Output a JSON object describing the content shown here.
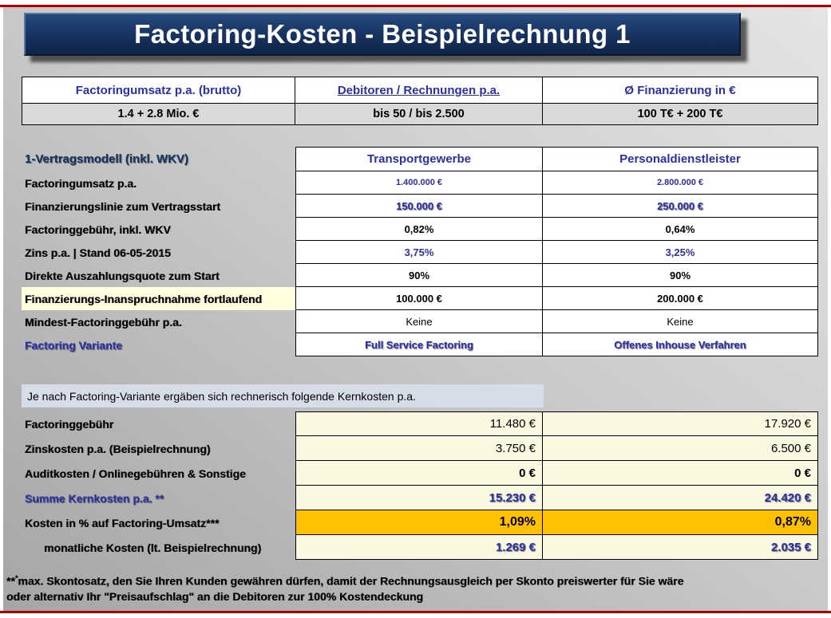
{
  "title": "Factoring-Kosten - Beispielrechnung 1",
  "summary_table": {
    "headers": [
      "Factoringumsatz p.a. (brutto)",
      "Debitoren / Rechnungen p.a.",
      "Ø Finanzierung in €"
    ],
    "values": [
      "1.4 + 2.8 Mio. €",
      "bis 50 / bis 2.500",
      "100 T€ + 200 T€"
    ]
  },
  "model_table": {
    "corner_label": "1-Vertragsmodell (inkl. WKV)",
    "columns": [
      "Transportgewerbe",
      "Personaldienstleister"
    ],
    "rows": [
      {
        "label": "Factoringumsatz p.a.",
        "v1": "1.400.000 €",
        "v2": "2.800.000 €"
      },
      {
        "label": "Finanzierungslinie zum Vertragsstart",
        "v1": "150.000 €",
        "v2": "250.000 €"
      },
      {
        "label": "Factoringgebühr, inkl. WKV",
        "v1": "0,82%",
        "v2": "0,64%"
      },
      {
        "label": "Zins p.a. | Stand 06-05-2015",
        "v1": "3,75%",
        "v2": "3,25%"
      },
      {
        "label": "Direkte Auszahlungsquote zum Start",
        "v1": "90%",
        "v2": "90%"
      },
      {
        "label": "Finanzierungs-Inanspruchnahme fortlaufend",
        "v1": "100.000 €",
        "v2": "200.000 €"
      },
      {
        "label": "Mindest-Factoringgebühr p.a.",
        "v1": "Keine",
        "v2": "Keine"
      },
      {
        "label": "Factoring Variante",
        "v1": "Full Service Factoring",
        "v2": "Offenes Inhouse Verfahren"
      }
    ]
  },
  "note_bar": {
    "text": "Je nach Factoring-Variante ergäben sich rechnerisch folgende Kernkosten p.a."
  },
  "cost_table": {
    "rows": [
      {
        "label": "Factoringgebühr",
        "v1": "11.480 €",
        "v2": "17.920 €"
      },
      {
        "label": "Zinskosten p.a. (Beispielrechnung)",
        "v1": "3.750 €",
        "v2": "6.500 €"
      },
      {
        "label": "Auditkosten / Onlinegebühren & Sonstige",
        "v1": "0 €",
        "v2": "0 €"
      },
      {
        "label": "Summe Kernkosten p.a. **",
        "v1": "15.230 €",
        "v2": "24.420 €"
      },
      {
        "label": "Kosten in % auf Factoring-Umsatz***",
        "v1": "1,09%",
        "v2": "0,87%"
      },
      {
        "label": "monatliche Kosten (lt. Beispielrechnung)",
        "v1": "1.269 €",
        "v2": "2.035 €"
      }
    ]
  },
  "footnote": {
    "marker": "**",
    "marker_sup": "*",
    "line1": "max. Skontosatz, den Sie Ihren Kunden gewähren dürfen, damit der Rechnungsausgleich per Skonto preiswerter für Sie wäre",
    "line2": "oder alternativ Ihr \"Preisaufschlag\" an die Debitoren zur 100% Kostendeckung"
  },
  "colors": {
    "title_navy": "#17325E",
    "accent_blue": "#2B2FA8",
    "highlight_orange": "#FFC000",
    "divider_red": "#B00000",
    "cell_cream": "#FBF8E2",
    "summary_gray": "#D9D9D9",
    "note_bar_bg": "#D6DCE8"
  }
}
